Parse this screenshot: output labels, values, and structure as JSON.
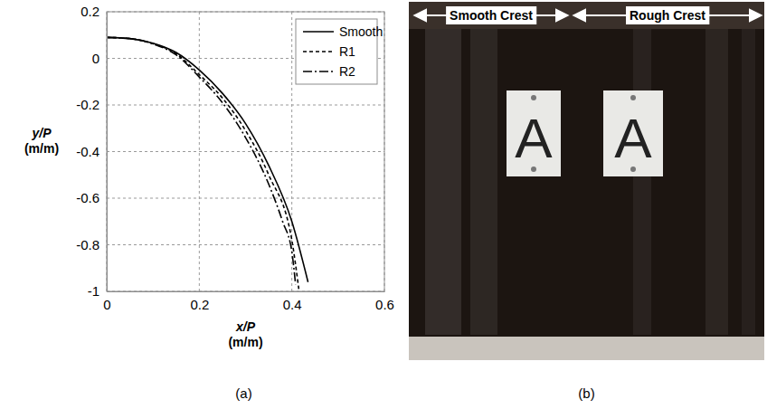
{
  "chart_data": {
    "type": "line",
    "xlabel": "x/P (m/m)",
    "ylabel": "y/P (m/m)",
    "xlim": [
      0,
      0.6
    ],
    "xticks": [
      0,
      0.2,
      0.4,
      0.6
    ],
    "ylim": [
      -1,
      0.2
    ],
    "yticks": [
      -1,
      -0.8,
      -0.6,
      -0.4,
      -0.2,
      0,
      0.2
    ],
    "grid": true,
    "legend": "upper right",
    "series": [
      {
        "name": "Smooth",
        "color": "#000000",
        "line_style": "solid",
        "x": [
          0,
          0.05,
          0.1,
          0.15,
          0.2,
          0.25,
          0.3,
          0.35,
          0.4,
          0.435
        ],
        "values": [
          0.09,
          0.085,
          0.065,
          0.025,
          -0.05,
          -0.15,
          -0.28,
          -0.46,
          -0.7,
          -0.96
        ]
      },
      {
        "name": "R1",
        "color": "#000000",
        "line_style": "dashed",
        "x": [
          0,
          0.05,
          0.1,
          0.15,
          0.2,
          0.25,
          0.3,
          0.35,
          0.4,
          0.415
        ],
        "values": [
          0.09,
          0.085,
          0.063,
          0.02,
          -0.07,
          -0.17,
          -0.31,
          -0.5,
          -0.78,
          -0.99
        ]
      },
      {
        "name": "R2",
        "color": "#000000",
        "line_style": "dash-dot",
        "x": [
          0,
          0.05,
          0.1,
          0.15,
          0.2,
          0.25,
          0.3,
          0.35,
          0.38,
          0.4,
          0.408
        ],
        "values": [
          0.09,
          0.085,
          0.062,
          0.015,
          -0.08,
          -0.19,
          -0.34,
          -0.54,
          -0.7,
          -0.83,
          -0.97
        ]
      }
    ]
  },
  "photo": {
    "left_label": "Smooth Crest",
    "right_label": "Rough Crest",
    "sign_texts": [
      "A",
      "A"
    ]
  },
  "panel_labels": [
    "(a)",
    "(b)"
  ]
}
